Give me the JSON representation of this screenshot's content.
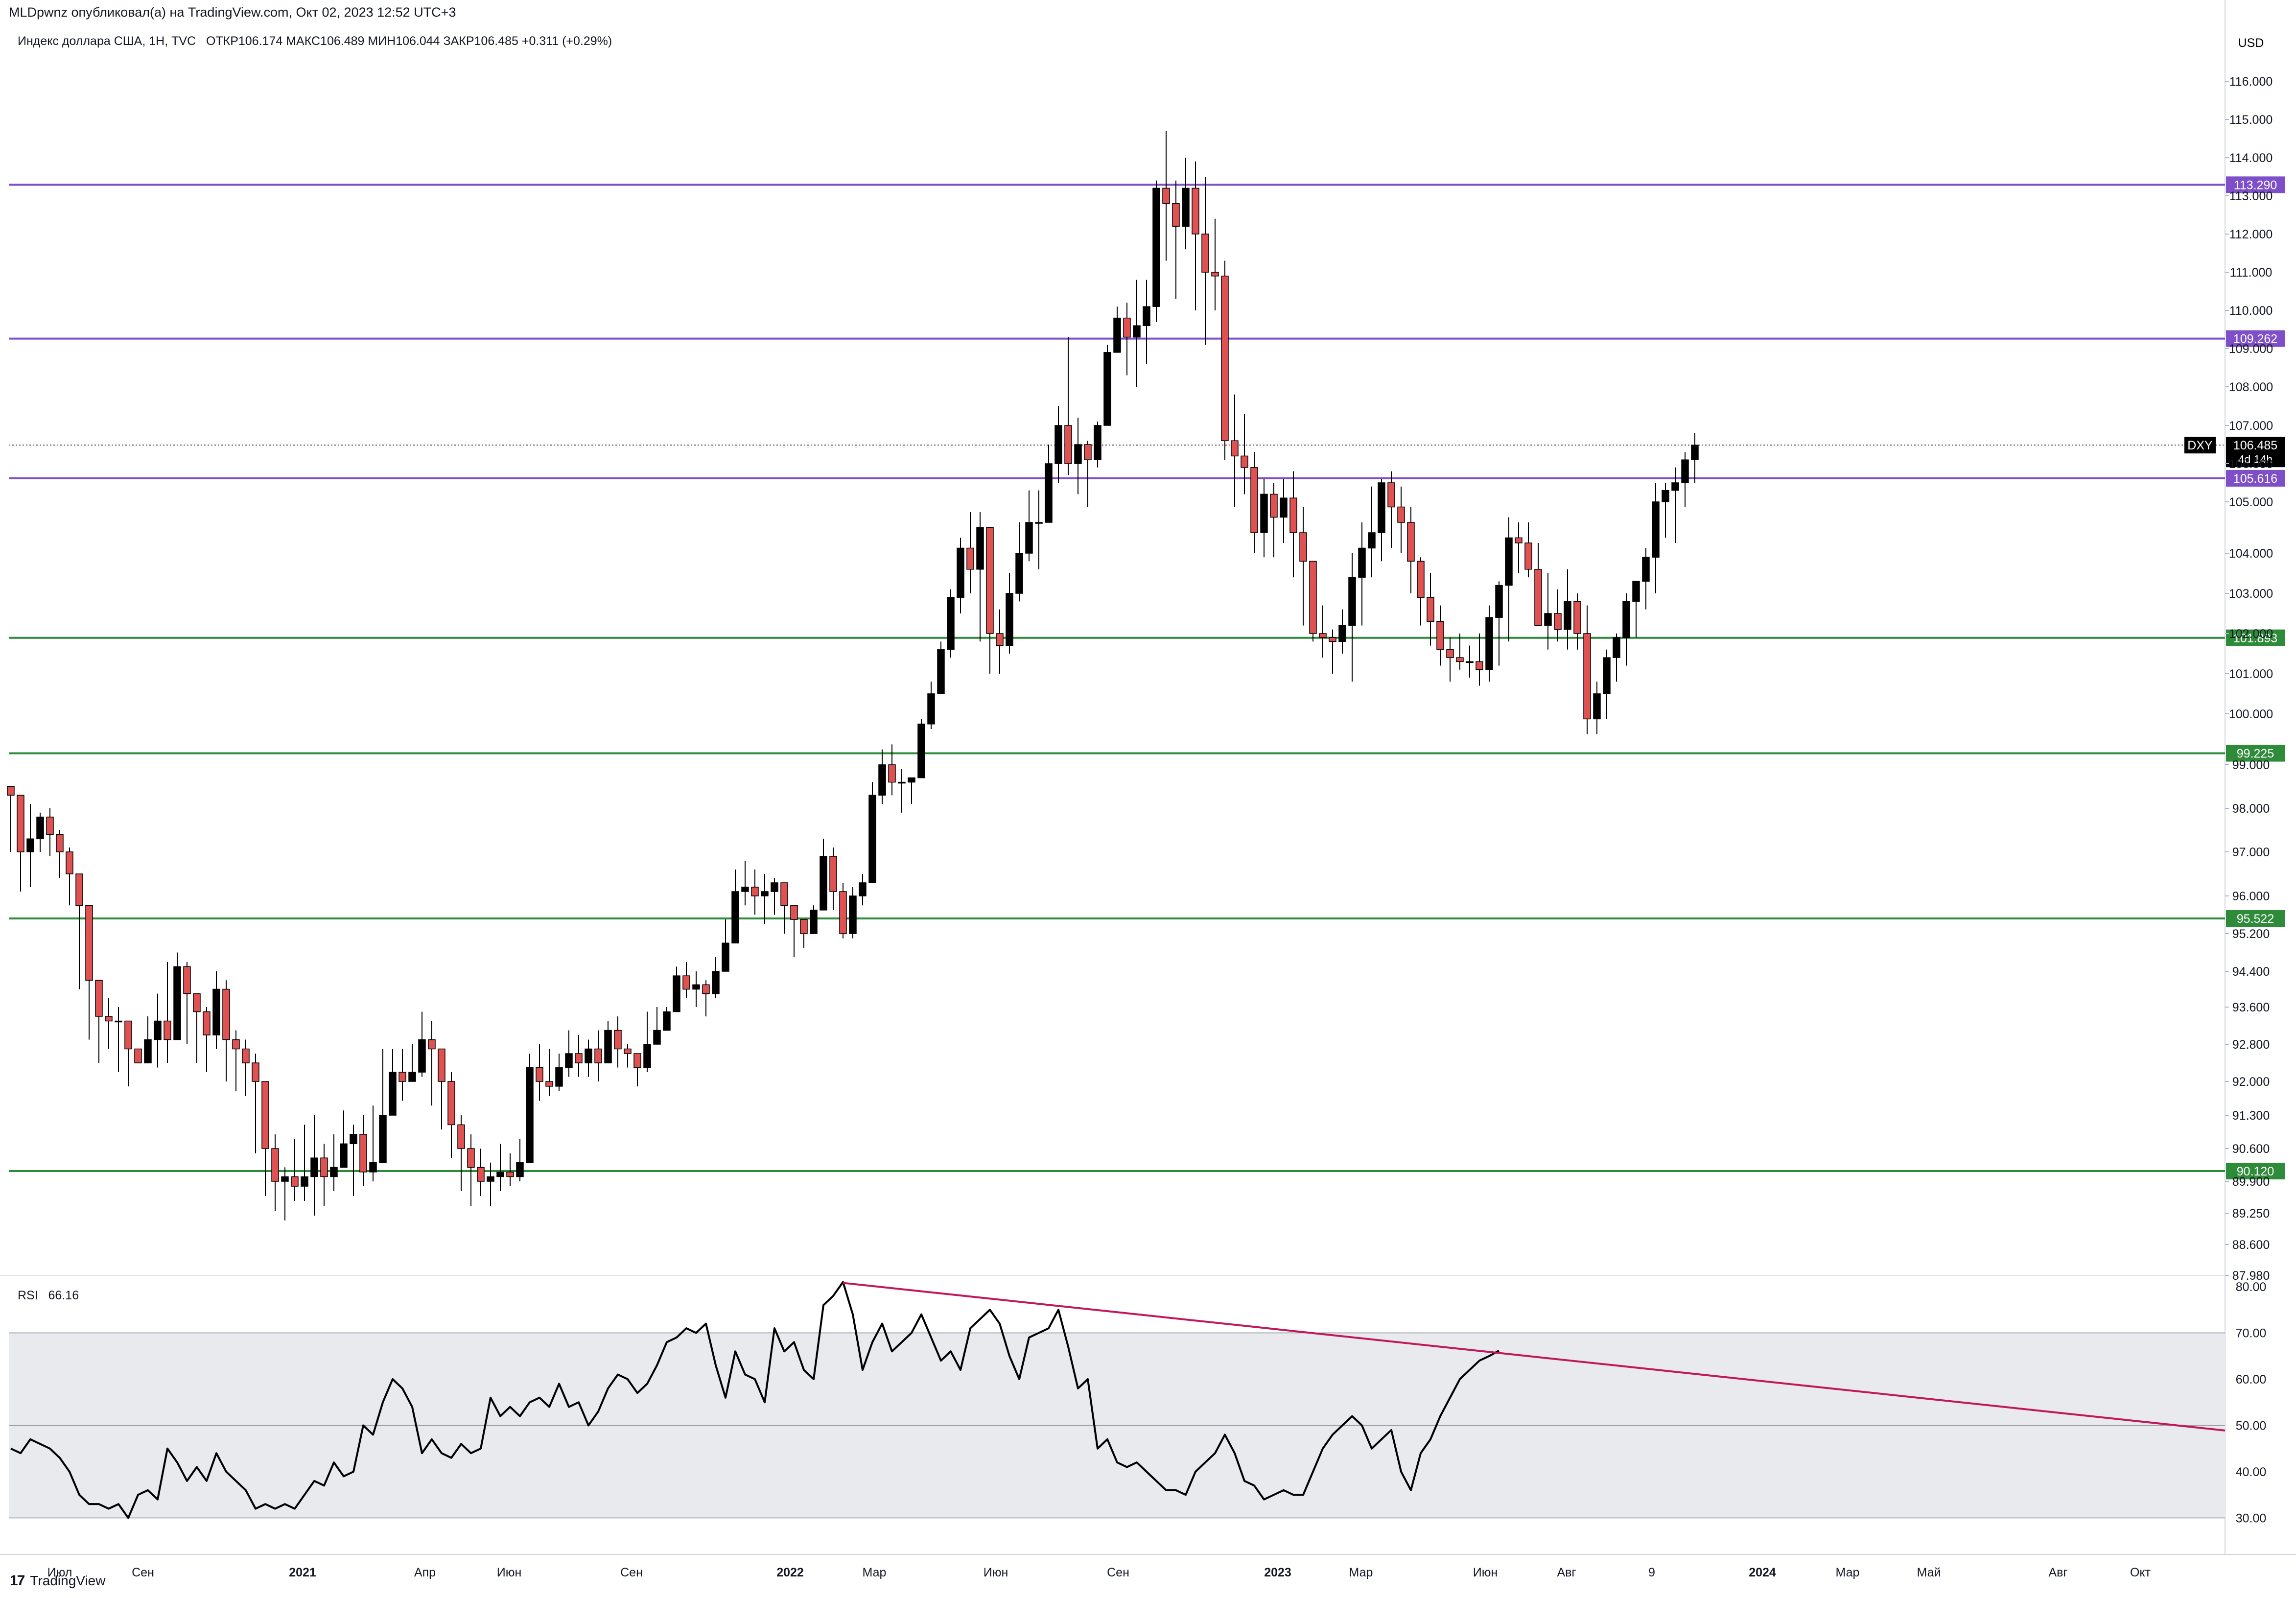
{
  "publisher_line": "MLDpwnz опубликовал(а) на TradingView.com, Окт 02, 2023 12:52 UTC+3",
  "brand": {
    "name": "TradingView",
    "icon": "tradingview-logo-icon"
  },
  "colors": {
    "up": "#000000",
    "down": "#e05252",
    "support": "#2e8b3a",
    "resistance": "#7e4fc9",
    "trend": "#c2185b",
    "rsi_band": "#e9eaee",
    "price_tag": "#000000"
  },
  "chart_data": [
    {
      "type": "candlestick",
      "title": "Индекс доллара США, 1Н, TVC",
      "ohlc_label": "ОТКР106.174  МАКС106.489  МИН106.044  ЗАКР106.485  +0.311 (+0.29%)",
      "currency": "USD",
      "symbol": "DXY",
      "last_price": "106.485",
      "countdown": "4d 14h",
      "y_ticks": [
        "116.000",
        "115.000",
        "114.000",
        "113.000",
        "112.000",
        "111.000",
        "110.000",
        "109.000",
        "108.000",
        "107.000",
        "106.000",
        "105.000",
        "104.000",
        "103.000",
        "102.000",
        "101.000",
        "100.000",
        "99.000",
        "98.000",
        "97.000",
        "96.000",
        "95.200",
        "94.400",
        "93.600",
        "92.800",
        "92.000",
        "91.300",
        "90.600",
        "89.900",
        "89.250",
        "88.600",
        "87.980"
      ],
      "x_ticks": [
        "Июл",
        "Сен",
        "2021",
        "Апр",
        "Июн",
        "Сен",
        "2022",
        "Мар",
        "Июн",
        "Сен",
        "2023",
        "Мар",
        "Июн",
        "Авг",
        "9",
        "2024",
        "Мар",
        "Май",
        "Авг",
        "Окт"
      ],
      "levels": [
        {
          "value": 113.29,
          "label": "113.290",
          "kind": "resistance"
        },
        {
          "value": 109.262,
          "label": "109.262",
          "kind": "resistance"
        },
        {
          "value": 105.616,
          "label": "105.616",
          "kind": "resistance"
        },
        {
          "value": 101.893,
          "label": "101.893",
          "kind": "support"
        },
        {
          "value": 99.225,
          "label": "99.225",
          "kind": "support"
        },
        {
          "value": 95.522,
          "label": "95.522",
          "kind": "support"
        },
        {
          "value": 90.12,
          "label": "90.120",
          "kind": "support"
        }
      ],
      "closes": [
        98.3,
        97.0,
        97.3,
        97.8,
        97.4,
        97.0,
        96.5,
        95.8,
        94.2,
        93.4,
        93.3,
        93.3,
        92.7,
        92.4,
        92.9,
        93.3,
        92.9,
        94.5,
        93.9,
        93.5,
        93.0,
        94.0,
        92.9,
        92.7,
        92.4,
        92.0,
        90.6,
        89.9,
        90.0,
        89.8,
        90.0,
        90.4,
        90.0,
        90.2,
        90.7,
        90.9,
        90.1,
        90.3,
        91.3,
        92.2,
        92.0,
        92.2,
        92.9,
        92.7,
        92.0,
        91.1,
        90.6,
        90.2,
        89.9,
        90.0,
        90.1,
        90.0,
        90.3,
        92.3,
        92.0,
        91.9,
        92.3,
        92.6,
        92.4,
        92.7,
        92.4,
        93.1,
        92.7,
        92.6,
        92.3,
        92.8,
        93.1,
        93.5,
        94.3,
        94.0,
        94.1,
        93.9,
        94.4,
        95.0,
        96.1,
        96.2,
        96.0,
        96.1,
        96.3,
        95.8,
        95.5,
        95.2,
        95.7,
        96.9,
        96.1,
        95.2,
        96.0,
        96.3,
        98.3,
        99.0,
        98.6,
        98.6,
        98.7,
        99.8,
        100.5,
        101.6,
        102.9,
        104.1,
        103.6,
        104.5,
        102.0,
        101.7,
        103.0,
        104.0,
        104.6,
        104.6,
        106.0,
        107.0,
        106.0,
        106.5,
        106.1,
        107.0,
        108.9,
        109.8,
        109.3,
        109.6,
        110.1,
        113.2,
        112.8,
        112.2,
        113.2,
        112.0,
        111.0,
        110.9,
        106.6,
        106.2,
        105.9,
        104.4,
        105.2,
        104.7,
        105.1,
        104.4,
        103.8,
        102.0,
        101.9,
        101.8,
        102.2,
        103.4,
        104.1,
        104.4,
        105.5,
        104.9,
        104.6,
        103.8,
        102.9,
        102.3,
        101.6,
        101.4,
        101.3,
        101.3,
        101.1,
        102.4,
        103.2,
        104.3,
        104.2,
        103.6,
        102.2,
        102.5,
        102.1,
        102.8,
        102.0,
        99.9,
        100.5,
        101.4,
        101.9,
        102.8,
        103.3,
        103.9,
        105.0,
        105.3,
        105.5,
        106.1,
        106.485
      ],
      "lows": [
        97.0,
        96.1,
        96.2,
        97.0,
        96.9,
        96.4,
        95.8,
        94.0,
        92.9,
        92.4,
        92.7,
        92.2,
        91.9,
        92.4,
        92.4,
        92.3,
        92.4,
        93.6,
        92.8,
        92.4,
        92.2,
        92.7,
        92.0,
        91.8,
        91.7,
        90.5,
        89.6,
        89.3,
        89.1,
        89.5,
        89.5,
        89.2,
        89.4,
        89.7,
        90.2,
        89.6,
        89.8,
        89.9,
        90.9,
        91.6,
        91.6,
        92.0,
        92.1,
        91.5,
        91.0,
        90.4,
        89.7,
        89.4,
        89.6,
        89.4,
        89.7,
        89.8,
        89.9,
        91.9,
        91.6,
        91.7,
        91.8,
        92.1,
        92.1,
        92.1,
        92.0,
        92.4,
        92.3,
        92.3,
        91.9,
        92.2,
        92.8,
        93.1,
        93.7,
        93.8,
        93.6,
        93.4,
        93.8,
        94.6,
        95.6,
        95.8,
        95.6,
        95.4,
        95.6,
        95.2,
        94.7,
        94.9,
        95.2,
        95.8,
        95.7,
        95.1,
        95.1,
        95.8,
        97.7,
        98.1,
        98.3,
        97.9,
        98.1,
        99.2,
        99.7,
        100.7,
        101.4,
        102.5,
        103.0,
        101.8,
        101.0,
        101.0,
        101.5,
        102.8,
        103.8,
        103.6,
        105.0,
        105.5,
        105.7,
        105.2,
        104.9,
        105.9,
        107.5,
        109.1,
        108.3,
        108.0,
        108.6,
        109.7,
        111.3,
        110.3,
        111.6,
        110.0,
        109.1,
        110.0,
        106.1,
        104.9,
        105.2,
        104.0,
        103.9,
        103.9,
        104.2,
        103.4,
        102.2,
        101.8,
        101.4,
        101.0,
        101.5,
        100.8,
        102.2,
        103.4,
        103.8,
        104.1,
        104.0,
        103.0,
        102.2,
        101.7,
        101.2,
        100.8,
        101.1,
        100.9,
        100.7,
        100.8,
        101.2,
        101.8,
        103.5,
        103.4,
        102.3,
        101.6,
        101.8,
        101.6,
        101.6,
        99.6,
        99.6,
        99.9,
        100.8,
        101.2,
        101.9,
        102.6,
        103.0,
        104.3,
        104.2,
        104.9,
        105.5,
        106.044
      ],
      "highs": [
        98.4,
        97.9,
        98.1,
        97.9,
        98.0,
        97.5,
        97.1,
        96.0,
        94.3,
        93.9,
        93.8,
        93.6,
        93.3,
        92.6,
        93.4,
        93.9,
        94.6,
        94.8,
        94.6,
        93.9,
        93.6,
        94.4,
        94.2,
        93.1,
        92.9,
        92.6,
        91.4,
        90.9,
        90.2,
        90.8,
        91.1,
        91.3,
        90.7,
        90.9,
        91.4,
        91.1,
        91.3,
        91.5,
        92.7,
        92.7,
        92.7,
        92.8,
        93.5,
        93.3,
        92.7,
        92.2,
        91.3,
        90.9,
        90.6,
        90.3,
        90.7,
        90.5,
        90.8,
        92.6,
        92.8,
        92.7,
        92.6,
        93.1,
        93.0,
        92.9,
        93.1,
        93.3,
        93.4,
        92.8,
        92.6,
        93.5,
        93.6,
        93.6,
        94.5,
        94.6,
        94.4,
        94.2,
        94.7,
        95.5,
        96.6,
        96.8,
        96.6,
        96.5,
        96.4,
        96.3,
        95.8,
        95.5,
        95.8,
        97.3,
        97.1,
        96.3,
        96.2,
        96.5,
        98.6,
        99.3,
        99.4,
        98.9,
        98.7,
        99.9,
        100.8,
        101.8,
        103.1,
        104.3,
        104.8,
        104.8,
        103.1,
        102.6,
        103.5,
        104.6,
        105.3,
        105.3,
        106.5,
        107.5,
        109.3,
        107.2,
        106.6,
        107.1,
        109.1,
        110.1,
        110.2,
        110.8,
        110.8,
        113.4,
        114.7,
        113.4,
        114.0,
        113.9,
        113.5,
        112.4,
        111.3,
        107.8,
        107.3,
        106.3,
        105.6,
        105.5,
        105.6,
        105.8,
        104.9,
        103.8,
        102.7,
        102.1,
        102.6,
        104.0,
        104.6,
        105.4,
        105.6,
        105.8,
        105.4,
        104.9,
        103.9,
        103.5,
        102.7,
        101.9,
        102.0,
        101.7,
        102.0,
        102.7,
        103.3,
        104.7,
        104.6,
        104.6,
        104.2,
        103.5,
        103.1,
        103.6,
        103.0,
        102.7,
        100.8,
        101.6,
        102.0,
        103.0,
        103.3,
        104.1,
        105.5,
        105.5,
        105.9,
        106.3,
        106.8,
        106.489
      ]
    },
    {
      "type": "line",
      "title": "RSI",
      "value_label": "66.16",
      "y_ticks": [
        "80.00",
        "70.00",
        "60.00",
        "50.00",
        "40.00",
        "30.00"
      ],
      "band": [
        30,
        70
      ],
      "midline": 50,
      "values": [
        45,
        44,
        47,
        46,
        45,
        43,
        40,
        35,
        33,
        33,
        32,
        33,
        30,
        35,
        36,
        34,
        45,
        42,
        38,
        41,
        38,
        44,
        40,
        38,
        36,
        32,
        33,
        32,
        33,
        32,
        35,
        38,
        37,
        42,
        39,
        40,
        50,
        48,
        55,
        60,
        58,
        54,
        44,
        47,
        44,
        43,
        46,
        44,
        45,
        56,
        52,
        54,
        52,
        55,
        56,
        54,
        59,
        54,
        55,
        50,
        53,
        58,
        61,
        60,
        57,
        59,
        63,
        68,
        69,
        71,
        70,
        72,
        63,
        56,
        66,
        61,
        60,
        55,
        71,
        66,
        68,
        62,
        60,
        76,
        78,
        81,
        74,
        62,
        68,
        72,
        66,
        68,
        70,
        74,
        69,
        64,
        66,
        62,
        71,
        73,
        75,
        72,
        65,
        60,
        69,
        70,
        71,
        75,
        67,
        58,
        60,
        45,
        47,
        42,
        41,
        42,
        40,
        38,
        36,
        36,
        35,
        40,
        42,
        44,
        48,
        44,
        38,
        37,
        34,
        35,
        36,
        35,
        35,
        40,
        45,
        48,
        50,
        52,
        50,
        45,
        47,
        49,
        40,
        36,
        44,
        47,
        52,
        56,
        60,
        62,
        64,
        65,
        66.16
      ],
      "trendline": [
        [
          85,
          80.8
        ],
        [
          233,
          48.9
        ]
      ]
    }
  ]
}
